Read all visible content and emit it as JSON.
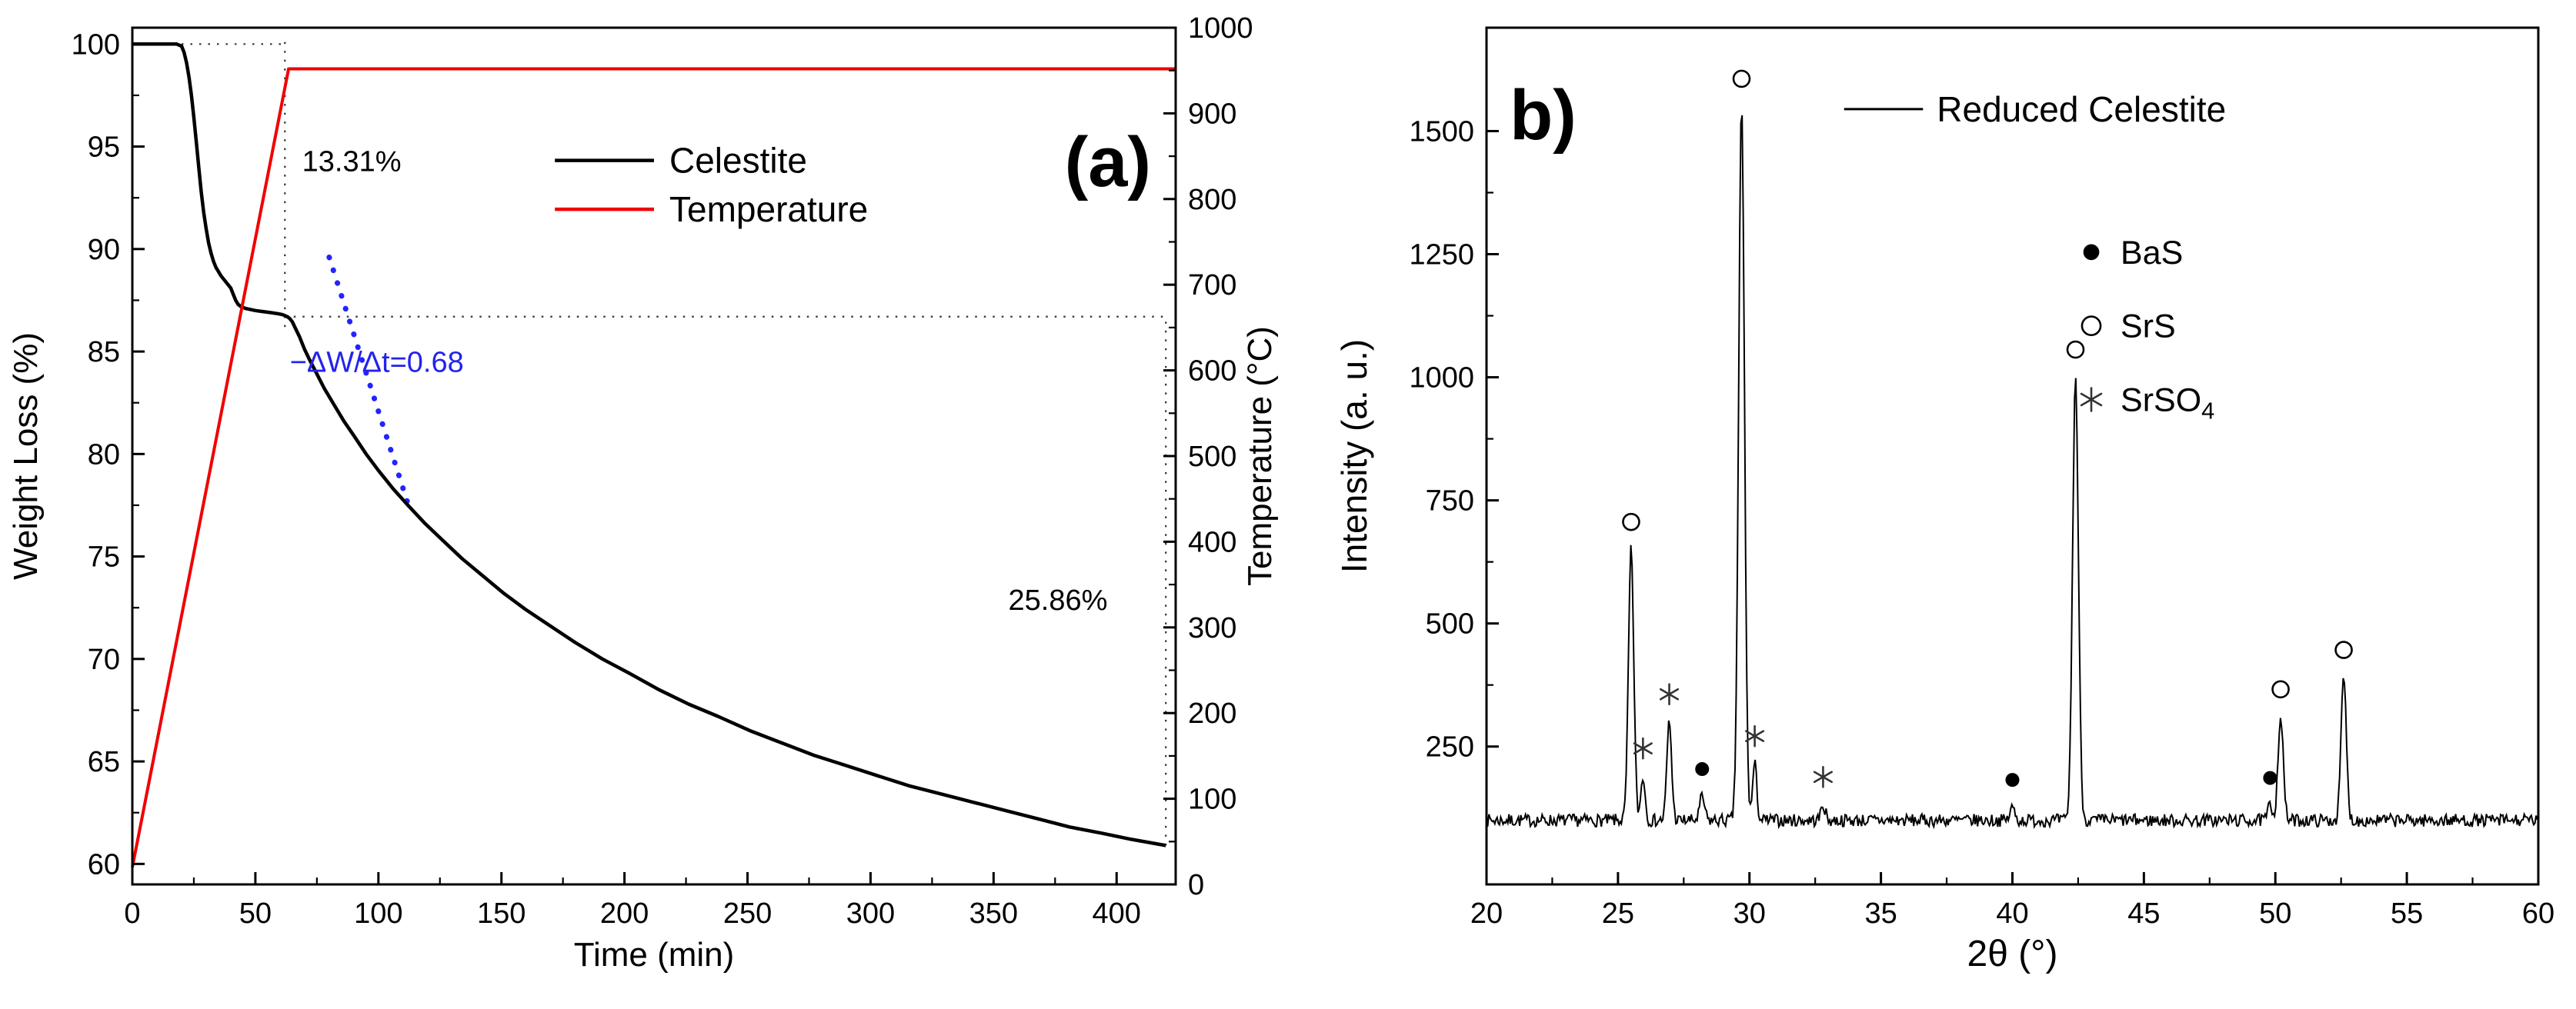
{
  "figure": {
    "background": "#ffffff"
  },
  "chart_data": [
    {
      "id": "panel_a",
      "type": "line",
      "panel_label": "(a)",
      "xlabel": "Time (min)",
      "ylabel_left": "Weight Loss (%)",
      "ylabel_right": "Temperature (°C)",
      "xlim": [
        0,
        424
      ],
      "xticks": [
        0,
        50,
        100,
        150,
        200,
        250,
        300,
        350,
        400
      ],
      "ylim_left": [
        59,
        100.8
      ],
      "yticks_left": [
        60,
        65,
        70,
        75,
        80,
        85,
        90,
        95,
        100
      ],
      "ylim_right": [
        0,
        1000
      ],
      "yticks_right": [
        0,
        100,
        200,
        300,
        400,
        500,
        600,
        700,
        800,
        900,
        1000
      ],
      "grid": false,
      "legend": {
        "x": 0.405,
        "y": 0.155,
        "row_gap": 0.057,
        "line_len": 0.095,
        "items": [
          {
            "label": "Celestite",
            "color": "#000000"
          },
          {
            "label": "Temperature",
            "color": "#f00000"
          }
        ]
      },
      "series": [
        {
          "name": "Celestite",
          "axis": "left",
          "color": "#000000",
          "width": 4.5,
          "points": [
            [
              0,
              100
            ],
            [
              5,
              100
            ],
            [
              10,
              100
            ],
            [
              15,
              100
            ],
            [
              18,
              100
            ],
            [
              20,
              99.9
            ],
            [
              21,
              99.6
            ],
            [
              22,
              99.1
            ],
            [
              23,
              98.4
            ],
            [
              24,
              97.5
            ],
            [
              25,
              96.4
            ],
            [
              26,
              95.2
            ],
            [
              27,
              94.0
            ],
            [
              28,
              92.8
            ],
            [
              29,
              91.8
            ],
            [
              30,
              91.0
            ],
            [
              31,
              90.3
            ],
            [
              32,
              89.8
            ],
            [
              33,
              89.4
            ],
            [
              34,
              89.1
            ],
            [
              35,
              88.9
            ],
            [
              36,
              88.7
            ],
            [
              38,
              88.4
            ],
            [
              40,
              88.1
            ],
            [
              41,
              87.8
            ],
            [
              42,
              87.5
            ],
            [
              43,
              87.3
            ],
            [
              44,
              87.2
            ],
            [
              46,
              87.1
            ],
            [
              48,
              87.05
            ],
            [
              50,
              87.0
            ],
            [
              53,
              86.95
            ],
            [
              56,
              86.9
            ],
            [
              59,
              86.85
            ],
            [
              61,
              86.8
            ],
            [
              63,
              86.7
            ],
            [
              64,
              86.6
            ],
            [
              65,
              86.45
            ],
            [
              66,
              86.2
            ],
            [
              68,
              85.7
            ],
            [
              70,
              85.1
            ],
            [
              72,
              84.6
            ],
            [
              75,
              83.9
            ],
            [
              78,
              83.2
            ],
            [
              82,
              82.4
            ],
            [
              86,
              81.6
            ],
            [
              90,
              80.9
            ],
            [
              95,
              80.0
            ],
            [
              100,
              79.2
            ],
            [
              106,
              78.3
            ],
            [
              112,
              77.5
            ],
            [
              119,
              76.6
            ],
            [
              126,
              75.8
            ],
            [
              134,
              74.9
            ],
            [
              142,
              74.1
            ],
            [
              151,
              73.2
            ],
            [
              160,
              72.4
            ],
            [
              170,
              71.6
            ],
            [
              180,
              70.8
            ],
            [
              191,
              70.0
            ],
            [
              202,
              69.3
            ],
            [
              214,
              68.5
            ],
            [
              226,
              67.8
            ],
            [
              238,
              67.2
            ],
            [
              251,
              66.5
            ],
            [
              264,
              65.9
            ],
            [
              277,
              65.3
            ],
            [
              290,
              64.8
            ],
            [
              303,
              64.3
            ],
            [
              316,
              63.8
            ],
            [
              329,
              63.4
            ],
            [
              342,
              63.0
            ],
            [
              355,
              62.6
            ],
            [
              368,
              62.2
            ],
            [
              381,
              61.8
            ],
            [
              394,
              61.5
            ],
            [
              406,
              61.2
            ],
            [
              413,
              61.05
            ],
            [
              420,
              60.9
            ]
          ]
        },
        {
          "name": "Temperature",
          "axis": "right",
          "color": "#f00000",
          "width": 4,
          "points": [
            [
              0,
              20
            ],
            [
              63.5,
              952
            ],
            [
              424,
              952
            ]
          ]
        }
      ],
      "guides": [
        {
          "x1": 20,
          "y1": 100,
          "x2": 62,
          "y2": 100,
          "color": "#333333",
          "style": "dot",
          "width": 2.2
        },
        {
          "x1": 62,
          "y1": 86.2,
          "x2": 62,
          "y2": 100.4,
          "color": "#333333",
          "style": "dot",
          "width": 2.2
        },
        {
          "x1": 62,
          "y1": 86.7,
          "x2": 420,
          "y2": 86.7,
          "color": "#333333",
          "style": "dot",
          "width": 2.2
        },
        {
          "x1": 420,
          "y1": 60.9,
          "x2": 420,
          "y2": 86.7,
          "color": "#333333",
          "style": "dot",
          "width": 2.2
        },
        {
          "x1": 80,
          "y1": 89.6,
          "x2": 113,
          "y2": 77.2,
          "color": "#2323ff",
          "style": "dot-bold",
          "width": 7
        }
      ],
      "annotations": [
        {
          "text": "13.31%",
          "x": 69,
          "y": 93.8,
          "color": "#000000"
        },
        {
          "text": "25.86%",
          "x": 356,
          "y": 72.4,
          "color": "#000000"
        },
        {
          "text": "−ΔW/Δt=0.68",
          "x": 64,
          "y": 84.0,
          "color": "#2323ee"
        }
      ]
    },
    {
      "id": "panel_b",
      "type": "line",
      "panel_label": "b)",
      "xlabel": "2θ (°)",
      "ylabel": "Intensity (a. u.)",
      "xlim": [
        20,
        60
      ],
      "xticks": [
        20,
        25,
        30,
        35,
        40,
        45,
        50,
        55,
        60
      ],
      "ylim": [
        -30,
        1710
      ],
      "yticks": [
        250,
        500,
        750,
        1000,
        1250,
        1500
      ],
      "grid": false,
      "trace": {
        "name": "Reduced Celestite",
        "color": "#000000",
        "width": 2,
        "baseline": 100,
        "noise_amplitude": 13,
        "seed": 7,
        "step": 0.045
      },
      "legend": {
        "x": 0.34,
        "y": 0.095,
        "line_len": 0.075,
        "label": "Reduced Celestite"
      },
      "phase_legend": {
        "x": 0.575,
        "y": 0.262,
        "row_gap": 0.086,
        "items": [
          {
            "symbol": "dot",
            "label": "BaS"
          },
          {
            "symbol": "circle",
            "label": "SrS"
          },
          {
            "symbol": "asterisk",
            "label": "SrSO",
            "sub": "4"
          }
        ]
      },
      "peaks": [
        {
          "x": 25.5,
          "top": 650,
          "width": 0.1,
          "phase": "circle"
        },
        {
          "x": 25.95,
          "top": 190,
          "width": 0.08,
          "phase": "asterisk"
        },
        {
          "x": 26.95,
          "top": 300,
          "width": 0.09,
          "phase": "asterisk"
        },
        {
          "x": 28.2,
          "top": 148,
          "width": 0.09,
          "phase": "dot"
        },
        {
          "x": 29.7,
          "top": 1550,
          "width": 0.11,
          "phase": "circle"
        },
        {
          "x": 30.2,
          "top": 215,
          "width": 0.08,
          "phase": "asterisk"
        },
        {
          "x": 32.8,
          "top": 132,
          "width": 0.08,
          "phase": "asterisk"
        },
        {
          "x": 40.0,
          "top": 126,
          "width": 0.09,
          "phase": "dot"
        },
        {
          "x": 42.4,
          "top": 1000,
          "width": 0.11,
          "phase": "circle"
        },
        {
          "x": 49.8,
          "top": 130,
          "width": 0.09,
          "phase": "dot"
        },
        {
          "x": 50.2,
          "top": 310,
          "width": 0.1,
          "phase": "circle"
        },
        {
          "x": 52.6,
          "top": 390,
          "width": 0.1,
          "phase": "circle"
        }
      ]
    }
  ]
}
